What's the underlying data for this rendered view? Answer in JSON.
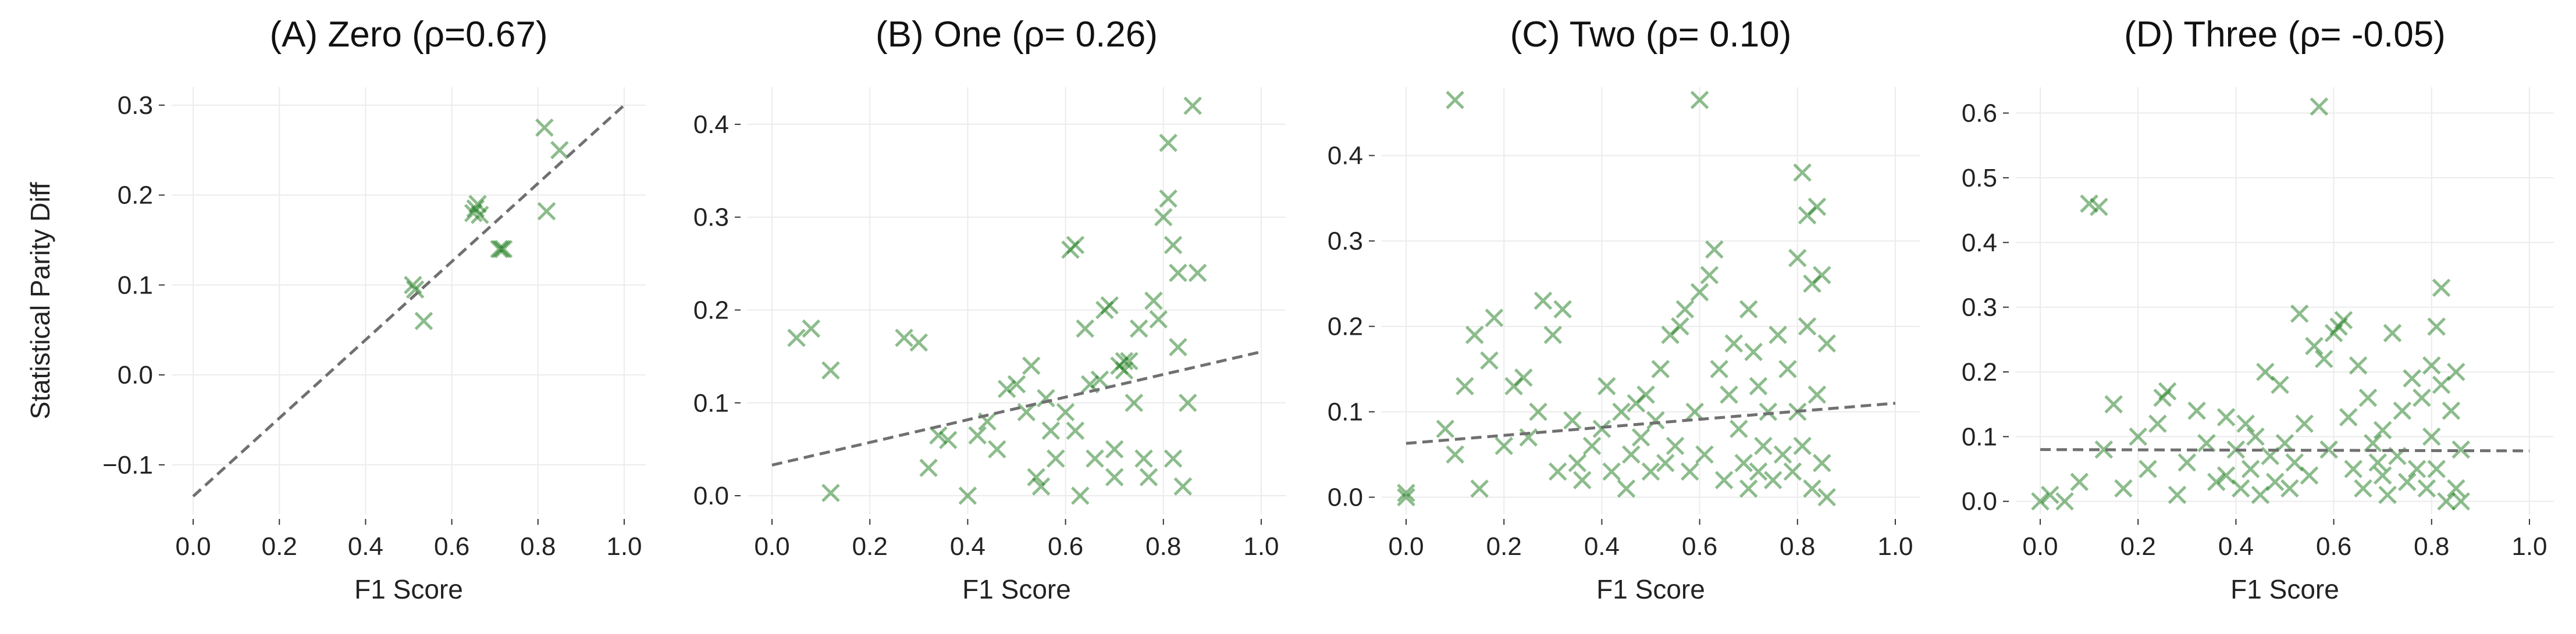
{
  "chart_data": [
    {
      "type": "scatter",
      "title": "(A) Zero (ρ=0.67)",
      "xlabel": "F1 Score",
      "ylabel": "Statistical Parity Diff",
      "xlim": [
        -0.05,
        1.05
      ],
      "ylim": [
        -0.155,
        0.32
      ],
      "xticks": [
        0.0,
        0.2,
        0.4,
        0.6,
        0.8,
        1.0
      ],
      "xtick_labels": [
        "0.0",
        "0.2",
        "0.4",
        "0.6",
        "0.8",
        "1.0"
      ],
      "yticks": [
        -0.1,
        0.0,
        0.1,
        0.2,
        0.3
      ],
      "ytick_labels": [
        "−0.1",
        "0.0",
        "0.1",
        "0.2",
        "0.3"
      ],
      "trend_line": {
        "x": [
          0.0,
          1.0
        ],
        "y": [
          -0.135,
          0.3
        ]
      },
      "grid": true,
      "marker": "x",
      "color": "#1a7a1a",
      "points": [
        [
          0.51,
          0.1
        ],
        [
          0.515,
          0.095
        ],
        [
          0.535,
          0.06
        ],
        [
          0.65,
          0.18
        ],
        [
          0.655,
          0.185
        ],
        [
          0.66,
          0.19
        ],
        [
          0.665,
          0.178
        ],
        [
          0.71,
          0.14
        ],
        [
          0.715,
          0.14
        ],
        [
          0.72,
          0.14
        ],
        [
          0.815,
          0.275
        ],
        [
          0.82,
          0.182
        ],
        [
          0.85,
          0.25
        ]
      ]
    },
    {
      "type": "scatter",
      "title": "(B) One (ρ= 0.26)",
      "xlabel": "F1 Score",
      "ylabel": "",
      "xlim": [
        -0.05,
        1.05
      ],
      "ylim": [
        -0.02,
        0.44
      ],
      "xticks": [
        0.0,
        0.2,
        0.4,
        0.6,
        0.8,
        1.0
      ],
      "xtick_labels": [
        "0.0",
        "0.2",
        "0.4",
        "0.6",
        "0.8",
        "1.0"
      ],
      "yticks": [
        0.0,
        0.1,
        0.2,
        0.3,
        0.4
      ],
      "ytick_labels": [
        "0.0",
        "0.1",
        "0.2",
        "0.3",
        "0.4"
      ],
      "trend_line": {
        "x": [
          0.0,
          1.0
        ],
        "y": [
          0.033,
          0.155
        ]
      },
      "grid": true,
      "marker": "x",
      "color": "#1a7a1a",
      "points": [
        [
          0.05,
          0.17
        ],
        [
          0.08,
          0.18
        ],
        [
          0.12,
          0.135
        ],
        [
          0.12,
          0.003
        ],
        [
          0.27,
          0.17
        ],
        [
          0.3,
          0.165
        ],
        [
          0.32,
          0.03
        ],
        [
          0.34,
          0.065
        ],
        [
          0.36,
          0.06
        ],
        [
          0.4,
          0.0
        ],
        [
          0.42,
          0.065
        ],
        [
          0.44,
          0.08
        ],
        [
          0.46,
          0.05
        ],
        [
          0.48,
          0.115
        ],
        [
          0.5,
          0.12
        ],
        [
          0.52,
          0.09
        ],
        [
          0.53,
          0.14
        ],
        [
          0.54,
          0.02
        ],
        [
          0.55,
          0.01
        ],
        [
          0.56,
          0.105
        ],
        [
          0.57,
          0.07
        ],
        [
          0.58,
          0.04
        ],
        [
          0.6,
          0.09
        ],
        [
          0.61,
          0.265
        ],
        [
          0.62,
          0.27
        ],
        [
          0.62,
          0.07
        ],
        [
          0.63,
          0.0
        ],
        [
          0.64,
          0.18
        ],
        [
          0.65,
          0.12
        ],
        [
          0.66,
          0.04
        ],
        [
          0.67,
          0.125
        ],
        [
          0.68,
          0.2
        ],
        [
          0.69,
          0.205
        ],
        [
          0.7,
          0.05
        ],
        [
          0.7,
          0.02
        ],
        [
          0.71,
          0.14
        ],
        [
          0.72,
          0.145
        ],
        [
          0.72,
          0.135
        ],
        [
          0.73,
          0.145
        ],
        [
          0.74,
          0.1
        ],
        [
          0.75,
          0.18
        ],
        [
          0.76,
          0.04
        ],
        [
          0.77,
          0.02
        ],
        [
          0.78,
          0.21
        ],
        [
          0.79,
          0.19
        ],
        [
          0.8,
          0.3
        ],
        [
          0.81,
          0.32
        ],
        [
          0.81,
          0.38
        ],
        [
          0.82,
          0.27
        ],
        [
          0.82,
          0.04
        ],
        [
          0.83,
          0.24
        ],
        [
          0.83,
          0.16
        ],
        [
          0.84,
          0.01
        ],
        [
          0.85,
          0.1
        ],
        [
          0.86,
          0.42
        ],
        [
          0.87,
          0.24
        ]
      ]
    },
    {
      "type": "scatter",
      "title": "(C) Two (ρ= 0.10)",
      "xlabel": "F1 Score",
      "ylabel": "",
      "xlim": [
        -0.05,
        1.05
      ],
      "ylim": [
        -0.02,
        0.48
      ],
      "xticks": [
        0.0,
        0.2,
        0.4,
        0.6,
        0.8,
        1.0
      ],
      "xtick_labels": [
        "0.0",
        "0.2",
        "0.4",
        "0.6",
        "0.8",
        "1.0"
      ],
      "yticks": [
        0.0,
        0.1,
        0.2,
        0.3,
        0.4
      ],
      "ytick_labels": [
        "0.0",
        "0.1",
        "0.2",
        "0.3",
        "0.4"
      ],
      "trend_line": {
        "x": [
          0.0,
          1.0
        ],
        "y": [
          0.063,
          0.11
        ]
      },
      "grid": true,
      "marker": "x",
      "color": "#1a7a1a",
      "points": [
        [
          0.0,
          0.0
        ],
        [
          0.0,
          0.005
        ],
        [
          0.1,
          0.465
        ],
        [
          0.6,
          0.465
        ],
        [
          0.08,
          0.08
        ],
        [
          0.1,
          0.05
        ],
        [
          0.12,
          0.13
        ],
        [
          0.14,
          0.19
        ],
        [
          0.15,
          0.01
        ],
        [
          0.17,
          0.16
        ],
        [
          0.18,
          0.21
        ],
        [
          0.2,
          0.06
        ],
        [
          0.22,
          0.13
        ],
        [
          0.24,
          0.14
        ],
        [
          0.25,
          0.07
        ],
        [
          0.27,
          0.1
        ],
        [
          0.28,
          0.23
        ],
        [
          0.3,
          0.19
        ],
        [
          0.31,
          0.03
        ],
        [
          0.32,
          0.22
        ],
        [
          0.34,
          0.09
        ],
        [
          0.35,
          0.04
        ],
        [
          0.36,
          0.02
        ],
        [
          0.38,
          0.06
        ],
        [
          0.4,
          0.08
        ],
        [
          0.41,
          0.13
        ],
        [
          0.42,
          0.03
        ],
        [
          0.44,
          0.1
        ],
        [
          0.45,
          0.01
        ],
        [
          0.46,
          0.05
        ],
        [
          0.47,
          0.11
        ],
        [
          0.48,
          0.07
        ],
        [
          0.49,
          0.12
        ],
        [
          0.5,
          0.03
        ],
        [
          0.51,
          0.09
        ],
        [
          0.52,
          0.15
        ],
        [
          0.53,
          0.04
        ],
        [
          0.54,
          0.19
        ],
        [
          0.55,
          0.06
        ],
        [
          0.56,
          0.2
        ],
        [
          0.57,
          0.22
        ],
        [
          0.58,
          0.03
        ],
        [
          0.59,
          0.1
        ],
        [
          0.6,
          0.24
        ],
        [
          0.61,
          0.05
        ],
        [
          0.62,
          0.26
        ],
        [
          0.63,
          0.29
        ],
        [
          0.64,
          0.15
        ],
        [
          0.65,
          0.02
        ],
        [
          0.66,
          0.12
        ],
        [
          0.67,
          0.18
        ],
        [
          0.68,
          0.08
        ],
        [
          0.69,
          0.04
        ],
        [
          0.7,
          0.22
        ],
        [
          0.7,
          0.01
        ],
        [
          0.71,
          0.17
        ],
        [
          0.72,
          0.03
        ],
        [
          0.72,
          0.13
        ],
        [
          0.73,
          0.06
        ],
        [
          0.74,
          0.1
        ],
        [
          0.75,
          0.02
        ],
        [
          0.76,
          0.19
        ],
        [
          0.77,
          0.05
        ],
        [
          0.78,
          0.15
        ],
        [
          0.79,
          0.03
        ],
        [
          0.8,
          0.28
        ],
        [
          0.8,
          0.1
        ],
        [
          0.81,
          0.38
        ],
        [
          0.81,
          0.06
        ],
        [
          0.82,
          0.2
        ],
        [
          0.82,
          0.33
        ],
        [
          0.83,
          0.01
        ],
        [
          0.83,
          0.25
        ],
        [
          0.84,
          0.12
        ],
        [
          0.84,
          0.34
        ],
        [
          0.85,
          0.04
        ],
        [
          0.85,
          0.26
        ],
        [
          0.86,
          0.18
        ],
        [
          0.86,
          0.0
        ]
      ]
    },
    {
      "type": "scatter",
      "title": "(D) Three (ρ= -0.05)",
      "xlabel": "F1 Score",
      "ylabel": "",
      "xlim": [
        -0.05,
        1.05
      ],
      "ylim": [
        -0.02,
        0.64
      ],
      "xticks": [
        0.0,
        0.2,
        0.4,
        0.6,
        0.8,
        1.0
      ],
      "xtick_labels": [
        "0.0",
        "0.2",
        "0.4",
        "0.6",
        "0.8",
        "1.0"
      ],
      "yticks": [
        0.0,
        0.1,
        0.2,
        0.3,
        0.4,
        0.5,
        0.6
      ],
      "ytick_labels": [
        "0.0",
        "0.1",
        "0.2",
        "0.3",
        "0.4",
        "0.5",
        "0.6"
      ],
      "trend_line": {
        "x": [
          0.0,
          1.0
        ],
        "y": [
          0.08,
          0.078
        ]
      },
      "grid": true,
      "marker": "x",
      "color": "#1a7a1a",
      "points": [
        [
          0.0,
          0.0
        ],
        [
          0.02,
          0.01
        ],
        [
          0.05,
          0.0
        ],
        [
          0.08,
          0.03
        ],
        [
          0.1,
          0.46
        ],
        [
          0.12,
          0.455
        ],
        [
          0.13,
          0.08
        ],
        [
          0.15,
          0.15
        ],
        [
          0.17,
          0.02
        ],
        [
          0.2,
          0.1
        ],
        [
          0.22,
          0.05
        ],
        [
          0.24,
          0.12
        ],
        [
          0.25,
          0.16
        ],
        [
          0.26,
          0.17
        ],
        [
          0.28,
          0.01
        ],
        [
          0.3,
          0.06
        ],
        [
          0.32,
          0.14
        ],
        [
          0.34,
          0.09
        ],
        [
          0.36,
          0.03
        ],
        [
          0.38,
          0.13
        ],
        [
          0.38,
          0.04
        ],
        [
          0.4,
          0.08
        ],
        [
          0.41,
          0.02
        ],
        [
          0.42,
          0.12
        ],
        [
          0.43,
          0.05
        ],
        [
          0.44,
          0.1
        ],
        [
          0.45,
          0.01
        ],
        [
          0.46,
          0.2
        ],
        [
          0.47,
          0.07
        ],
        [
          0.48,
          0.03
        ],
        [
          0.49,
          0.18
        ],
        [
          0.5,
          0.09
        ],
        [
          0.51,
          0.02
        ],
        [
          0.52,
          0.06
        ],
        [
          0.53,
          0.29
        ],
        [
          0.54,
          0.12
        ],
        [
          0.55,
          0.04
        ],
        [
          0.56,
          0.24
        ],
        [
          0.57,
          0.61
        ],
        [
          0.58,
          0.22
        ],
        [
          0.59,
          0.08
        ],
        [
          0.6,
          0.26
        ],
        [
          0.61,
          0.27
        ],
        [
          0.62,
          0.28
        ],
        [
          0.63,
          0.13
        ],
        [
          0.64,
          0.05
        ],
        [
          0.65,
          0.21
        ],
        [
          0.66,
          0.02
        ],
        [
          0.67,
          0.16
        ],
        [
          0.68,
          0.09
        ],
        [
          0.69,
          0.06
        ],
        [
          0.7,
          0.04
        ],
        [
          0.7,
          0.11
        ],
        [
          0.71,
          0.01
        ],
        [
          0.72,
          0.26
        ],
        [
          0.73,
          0.07
        ],
        [
          0.74,
          0.14
        ],
        [
          0.75,
          0.03
        ],
        [
          0.76,
          0.19
        ],
        [
          0.77,
          0.05
        ],
        [
          0.78,
          0.16
        ],
        [
          0.79,
          0.02
        ],
        [
          0.8,
          0.1
        ],
        [
          0.8,
          0.21
        ],
        [
          0.81,
          0.27
        ],
        [
          0.81,
          0.05
        ],
        [
          0.82,
          0.33
        ],
        [
          0.82,
          0.18
        ],
        [
          0.83,
          0.0
        ],
        [
          0.84,
          0.14
        ],
        [
          0.85,
          0.2
        ],
        [
          0.85,
          0.02
        ],
        [
          0.86,
          0.08
        ],
        [
          0.86,
          0.0
        ]
      ]
    }
  ]
}
